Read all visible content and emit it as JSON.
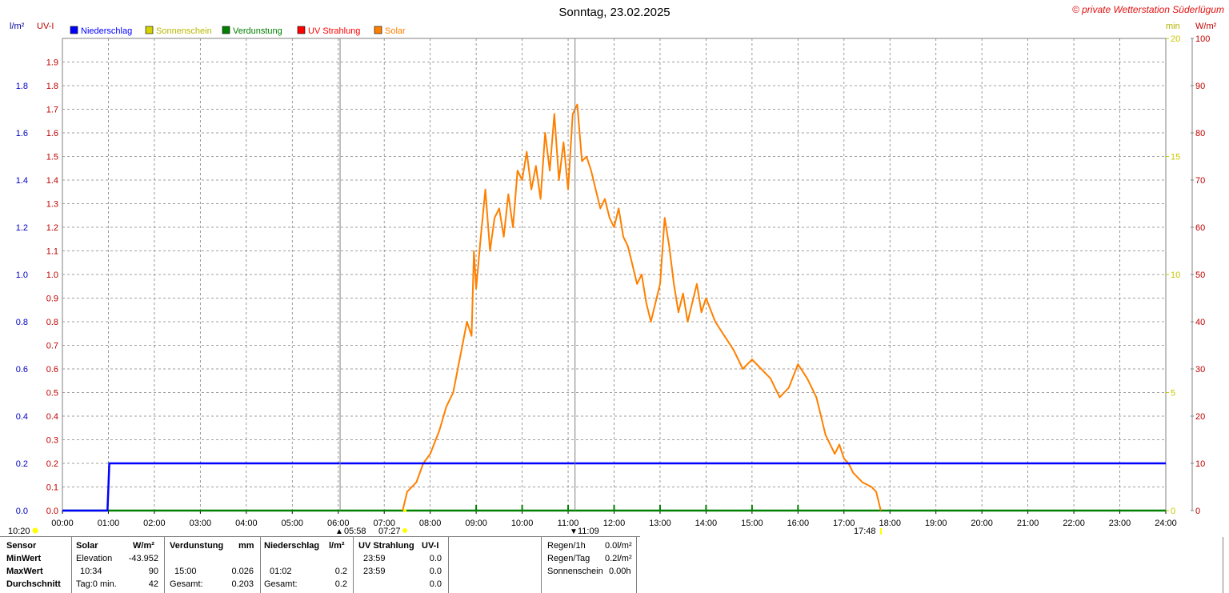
{
  "header": {
    "title": "Sonntag, 23.02.2025",
    "watermark": "© private Wetterstation Süderlügum",
    "left_unit_1": "l/m²",
    "left_unit_2": "UV-I",
    "right_unit_1": "min",
    "right_unit_2": "W/m²"
  },
  "legend": [
    {
      "label": "Niederschlag",
      "color": "#0000ff"
    },
    {
      "label": "Sonnenschein",
      "color": "#d4d400"
    },
    {
      "label": "Verdunstung",
      "color": "#008000"
    },
    {
      "label": "UV Strahlung",
      "color": "#ff0000"
    },
    {
      "label": "Solar",
      "color": "#ff8000"
    }
  ],
  "markers": {
    "start_time": "10:20",
    "dawn": "05:58",
    "sunrise": "07:27",
    "noon": "11:09",
    "sunset": "17:48"
  },
  "stats": {
    "headers": [
      "Sensor",
      "Solar",
      "W/m²",
      "Verdunstung",
      "mm",
      "Niederschlag",
      "l/m²",
      "UV Strahlung",
      "UV-I"
    ],
    "rows": [
      {
        "label": "MinWert",
        "solar_time": "Elevation",
        "solar_val": "-43.952",
        "verd_time": "",
        "verd_val": "",
        "nied_time": "",
        "nied_val": "",
        "uv_time": "23:59",
        "uv_val": "0.0"
      },
      {
        "label": "MaxWert",
        "solar_time": "10:34",
        "solar_val": "90",
        "verd_time": "15:00",
        "verd_val": "0.026",
        "nied_time": "01:02",
        "nied_val": "0.2",
        "uv_time": "23:59",
        "uv_val": "0.0"
      },
      {
        "label": "Durchschnitt",
        "solar_time": "Tag:0 min.",
        "solar_val": "42",
        "verd_time": "Gesamt:",
        "verd_val": "0.203",
        "nied_time": "Gesamt:",
        "nied_val": "0.2",
        "uv_time": "",
        "uv_val": "0.0"
      }
    ],
    "rain": [
      {
        "label": "Regen/1h",
        "value": "0.0l/m²"
      },
      {
        "label": "Regen/Tag",
        "value": "0.2l/m²"
      },
      {
        "label": "Sonnenschein",
        "value": "0.00h"
      }
    ]
  },
  "colors": {
    "rain": "#0000ff",
    "solar": "#ff8000",
    "evap": "#008000",
    "uv": "#ff0000",
    "sun": "#d4d400",
    "grid": "#808080"
  },
  "chart_data": {
    "type": "line",
    "title": "Sonntag, 23.02.2025",
    "x_ticks": [
      "00:00",
      "01:00",
      "02:00",
      "03:00",
      "04:00",
      "05:00",
      "06:00",
      "07:00",
      "08:00",
      "09:00",
      "10:00",
      "11:00",
      "12:00",
      "13:00",
      "14:00",
      "15:00",
      "16:00",
      "17:00",
      "18:00",
      "19:00",
      "20:00",
      "21:00",
      "22:00",
      "23:00",
      "24:00"
    ],
    "axes": {
      "rain": {
        "label": "l/m²",
        "min": 0,
        "max": 2.0,
        "ticks": [
          "0.0",
          "0.2",
          "0.4",
          "0.6",
          "0.8",
          "1.0",
          "1.2",
          "1.4",
          "1.6",
          "1.8"
        ]
      },
      "uv": {
        "label": "UV-I",
        "min": 0,
        "max": 2.0,
        "ticks": [
          "0.0",
          "0.1",
          "0.2",
          "0.3",
          "0.4",
          "0.5",
          "0.6",
          "0.7",
          "0.8",
          "0.9",
          "1.0",
          "1.1",
          "1.2",
          "1.3",
          "1.4",
          "1.5",
          "1.6",
          "1.7",
          "1.8",
          "1.9"
        ]
      },
      "sunshine": {
        "label": "min",
        "min": 0,
        "max": 20,
        "ticks": [
          "0",
          "5",
          "10",
          "15",
          "20"
        ]
      },
      "solar": {
        "label": "W/m²",
        "min": 0,
        "max": 100,
        "ticks": [
          "0",
          "10",
          "20",
          "30",
          "40",
          "50",
          "60",
          "70",
          "80",
          "90",
          "100"
        ]
      }
    },
    "grid": true,
    "series": [
      {
        "name": "Niederschlag",
        "axis": "rain",
        "points": [
          [
            0,
            0
          ],
          [
            0.66,
            0
          ],
          [
            0.98,
            0
          ],
          [
            1.0,
            0.1
          ],
          [
            1.02,
            0.2
          ],
          [
            24,
            0.2
          ]
        ]
      },
      {
        "name": "Solar",
        "axis": "solar",
        "points": [
          [
            7.4,
            0
          ],
          [
            7.5,
            4
          ],
          [
            7.7,
            6
          ],
          [
            7.85,
            10
          ],
          [
            8.0,
            12
          ],
          [
            8.2,
            17
          ],
          [
            8.35,
            22
          ],
          [
            8.5,
            25
          ],
          [
            8.6,
            30
          ],
          [
            8.7,
            35
          ],
          [
            8.8,
            40
          ],
          [
            8.9,
            37
          ],
          [
            8.95,
            55
          ],
          [
            9.0,
            47
          ],
          [
            9.1,
            58
          ],
          [
            9.2,
            68
          ],
          [
            9.3,
            55
          ],
          [
            9.4,
            62
          ],
          [
            9.5,
            64
          ],
          [
            9.6,
            58
          ],
          [
            9.7,
            67
          ],
          [
            9.8,
            60
          ],
          [
            9.9,
            72
          ],
          [
            10.0,
            70
          ],
          [
            10.1,
            76
          ],
          [
            10.2,
            68
          ],
          [
            10.3,
            73
          ],
          [
            10.4,
            66
          ],
          [
            10.5,
            80
          ],
          [
            10.6,
            72
          ],
          [
            10.7,
            84
          ],
          [
            10.8,
            70
          ],
          [
            10.9,
            78
          ],
          [
            11.0,
            68
          ],
          [
            11.1,
            84
          ],
          [
            11.2,
            86
          ],
          [
            11.3,
            74
          ],
          [
            11.4,
            75
          ],
          [
            11.5,
            72
          ],
          [
            11.6,
            68
          ],
          [
            11.7,
            64
          ],
          [
            11.8,
            66
          ],
          [
            11.9,
            62
          ],
          [
            12.0,
            60
          ],
          [
            12.1,
            64
          ],
          [
            12.2,
            58
          ],
          [
            12.3,
            56
          ],
          [
            12.4,
            52
          ],
          [
            12.5,
            48
          ],
          [
            12.6,
            50
          ],
          [
            12.7,
            44
          ],
          [
            12.8,
            40
          ],
          [
            12.9,
            44
          ],
          [
            13.0,
            48
          ],
          [
            13.1,
            62
          ],
          [
            13.2,
            56
          ],
          [
            13.3,
            48
          ],
          [
            13.4,
            42
          ],
          [
            13.5,
            46
          ],
          [
            13.6,
            40
          ],
          [
            13.7,
            44
          ],
          [
            13.8,
            48
          ],
          [
            13.9,
            42
          ],
          [
            14.0,
            45
          ],
          [
            14.2,
            40
          ],
          [
            14.4,
            37
          ],
          [
            14.6,
            34
          ],
          [
            14.8,
            30
          ],
          [
            15.0,
            32
          ],
          [
            15.2,
            30
          ],
          [
            15.4,
            28
          ],
          [
            15.6,
            24
          ],
          [
            15.8,
            26
          ],
          [
            16.0,
            31
          ],
          [
            16.2,
            28
          ],
          [
            16.4,
            24
          ],
          [
            16.5,
            20
          ],
          [
            16.55,
            18
          ],
          [
            16.6,
            16
          ],
          [
            16.7,
            14
          ],
          [
            16.8,
            12
          ],
          [
            16.9,
            14
          ],
          [
            17.0,
            11
          ],
          [
            17.1,
            10
          ],
          [
            17.2,
            8
          ],
          [
            17.4,
            6
          ],
          [
            17.6,
            5
          ],
          [
            17.7,
            4
          ],
          [
            17.8,
            0
          ]
        ]
      },
      {
        "name": "Verdunstung",
        "axis": "rain",
        "points": [
          [
            0,
            0
          ],
          [
            24,
            0
          ]
        ]
      }
    ]
  }
}
